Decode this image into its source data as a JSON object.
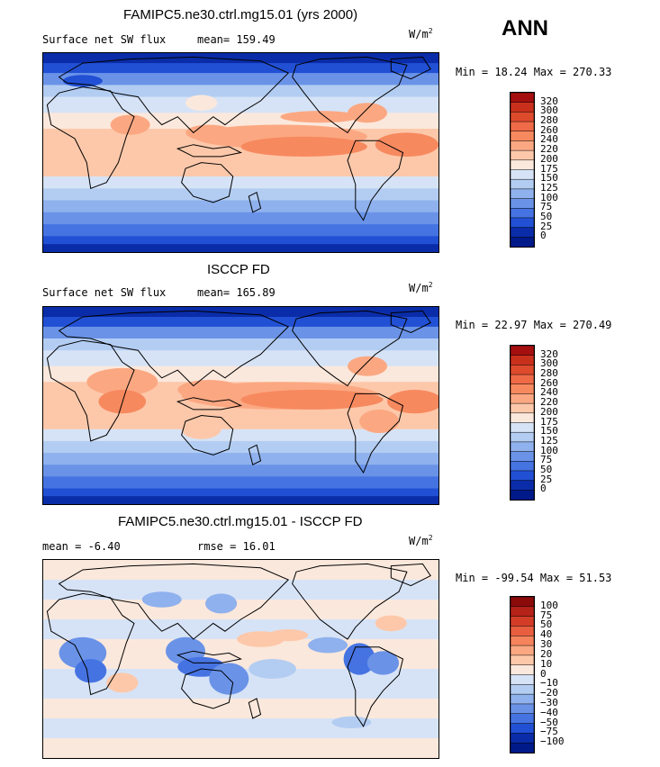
{
  "season": "ANN",
  "units": "W/m",
  "units_sup": "2",
  "panels": [
    {
      "title": "FAMIPC5.ne30.ctrl.mg15.01 (yrs 2000)",
      "left_label": "Surface net SW flux",
      "stat_label": "mean=",
      "stat_value": "159.49",
      "minmax": "Min =  18.24 Max = 270.33",
      "colorbar_levels": [
        "320",
        "300",
        "280",
        "260",
        "240",
        "220",
        "200",
        "175",
        "150",
        "125",
        "100",
        "75",
        "50",
        "25",
        "0"
      ],
      "colorbar_colors": [
        "#a50f0f",
        "#c9301c",
        "#de4a2c",
        "#ef6a47",
        "#f7895f",
        "#fba882",
        "#fdc8aa",
        "#fbe8dc",
        "#d6e3f6",
        "#b3cdf2",
        "#8fb1ed",
        "#6a93e8",
        "#4673e2",
        "#2150d4",
        "#0a2ca8",
        "#001a8a"
      ]
    },
    {
      "title": "ISCCP FD",
      "left_label": "Surface net SW flux",
      "stat_label": "mean=",
      "stat_value": "165.89",
      "minmax": "Min =  22.97 Max = 270.49",
      "colorbar_levels": [
        "320",
        "300",
        "280",
        "260",
        "240",
        "220",
        "200",
        "175",
        "150",
        "125",
        "100",
        "75",
        "50",
        "25",
        "0"
      ],
      "colorbar_colors": [
        "#a50f0f",
        "#c9301c",
        "#de4a2c",
        "#ef6a47",
        "#f7895f",
        "#fba882",
        "#fdc8aa",
        "#fbe8dc",
        "#d6e3f6",
        "#b3cdf2",
        "#8fb1ed",
        "#6a93e8",
        "#4673e2",
        "#2150d4",
        "#0a2ca8",
        "#001a8a"
      ]
    },
    {
      "title": "FAMIPC5.ne30.ctrl.mg15.01 - ISCCP FD",
      "left_label": "mean =  -6.40",
      "stat_label": "rmse =",
      "stat_value": "16.01",
      "minmax": "Min = -99.54 Max =  51.53",
      "colorbar_levels": [
        "100",
        "75",
        "50",
        "40",
        "30",
        "20",
        "10",
        "0",
        "−10",
        "−20",
        "−30",
        "−40",
        "−50",
        "−75",
        "−100"
      ],
      "colorbar_colors": [
        "#8b0a0a",
        "#b52218",
        "#d33d27",
        "#e85e3f",
        "#f5835c",
        "#fba882",
        "#fdc8aa",
        "#fbe8dc",
        "#d6e3f6",
        "#b3cdf2",
        "#8fb1ed",
        "#6a93e8",
        "#4673e2",
        "#2150d4",
        "#0a2ca8",
        "#001a8a"
      ]
    }
  ],
  "chart_data": {
    "type": "heatmap",
    "variable": "Surface net SW flux",
    "units": "W/m2",
    "season": "ANN",
    "panels": [
      {
        "name": "FAMIPC5.ne30.ctrl.mg15.01 (yrs 2000)",
        "mean": 159.49,
        "min": 18.24,
        "max": 270.33,
        "contour_levels": [
          0,
          25,
          50,
          75,
          100,
          125,
          150,
          175,
          200,
          220,
          240,
          260,
          280,
          300,
          320
        ]
      },
      {
        "name": "ISCCP FD",
        "mean": 165.89,
        "min": 22.97,
        "max": 270.49,
        "contour_levels": [
          0,
          25,
          50,
          75,
          100,
          125,
          150,
          175,
          200,
          220,
          240,
          260,
          280,
          300,
          320
        ]
      },
      {
        "name": "FAMIPC5.ne30.ctrl.mg15.01 - ISCCP FD",
        "mean": -6.4,
        "rmse": 16.01,
        "min": -99.54,
        "max": 51.53,
        "contour_levels": [
          -100,
          -75,
          -50,
          -40,
          -30,
          -20,
          -10,
          0,
          10,
          20,
          30,
          40,
          50,
          75,
          100
        ]
      }
    ]
  }
}
